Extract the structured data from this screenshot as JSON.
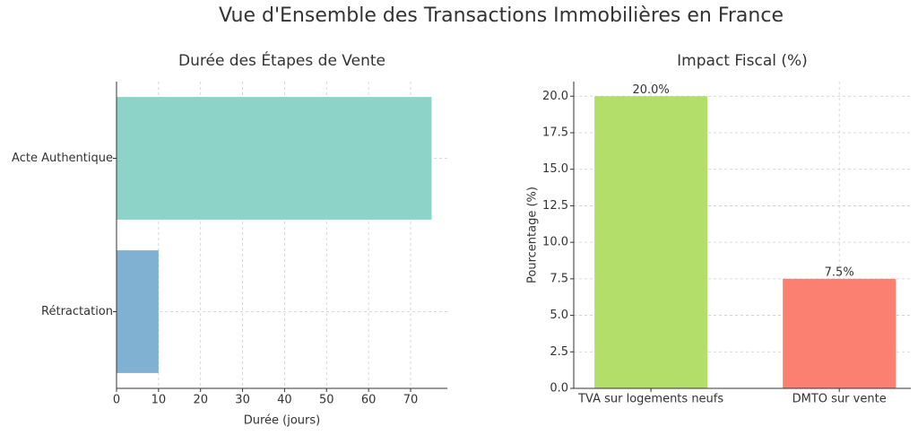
{
  "title": "Vue d'Ensemble des Transactions Immobilières en France",
  "chart_data": [
    {
      "type": "barh",
      "title": "Durée des Étapes de Vente",
      "xlabel": "Durée (jours)",
      "categories": [
        "Rétractation",
        "Acte Authentique"
      ],
      "values": [
        10,
        75
      ],
      "colors": [
        "#80b1d3",
        "#8dd3c7"
      ],
      "xlim": [
        0,
        78.75
      ],
      "xticks": [
        0,
        10,
        20,
        30,
        40,
        50,
        60,
        70
      ],
      "grid": true
    },
    {
      "type": "bar",
      "title": "Impact Fiscal (%)",
      "ylabel": "Pourcentage (%)",
      "categories": [
        "TVA sur logements neufs",
        "DMTO sur vente"
      ],
      "values": [
        20,
        7.5
      ],
      "value_labels": [
        "20.0%",
        "7.5%"
      ],
      "colors": [
        "#b3de69",
        "#fb8072"
      ],
      "ylim": [
        0,
        21
      ],
      "yticks": [
        {
          "value": 0,
          "label": "0.0"
        },
        {
          "value": 2.5,
          "label": "2.5"
        },
        {
          "value": 5,
          "label": "5.0"
        },
        {
          "value": 7.5,
          "label": "7.5"
        },
        {
          "value": 10,
          "label": "10.0"
        },
        {
          "value": 12.5,
          "label": "12.5"
        },
        {
          "value": 15,
          "label": "15.0"
        },
        {
          "value": 17.5,
          "label": "17.5"
        },
        {
          "value": 20,
          "label": "20.0"
        }
      ],
      "grid": true
    }
  ]
}
